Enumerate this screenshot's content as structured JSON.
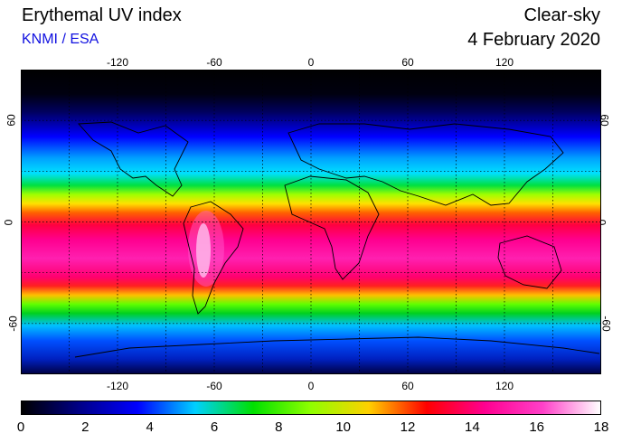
{
  "header": {
    "title": "Erythemal UV index",
    "subtitle": "KNMI / ESA",
    "condition": "Clear-sky",
    "date": "4 February 2020"
  },
  "map": {
    "longitude_ticks": [
      "-120",
      "-60",
      "0",
      "60",
      "120"
    ],
    "longitude_values": [
      -120,
      -60,
      0,
      60,
      120
    ],
    "latitude_ticks": [
      "60",
      "0",
      "-60"
    ],
    "latitude_values": [
      60,
      0,
      -60
    ],
    "lon_range": [
      -180,
      180
    ],
    "lat_range": [
      -90,
      90
    ],
    "grid": "dotted 30-degree lines"
  },
  "colorbar": {
    "labels": [
      "0",
      "2",
      "4",
      "6",
      "8",
      "10",
      "12",
      "14",
      "16",
      "18"
    ],
    "range": [
      0,
      18
    ],
    "colors": [
      "#000000",
      "#000088",
      "#0000ff",
      "#00d0ff",
      "#00e000",
      "#90ff00",
      "#ffd000",
      "#ff0000",
      "#ff0090",
      "#ff40c8",
      "#ffffff"
    ]
  }
}
